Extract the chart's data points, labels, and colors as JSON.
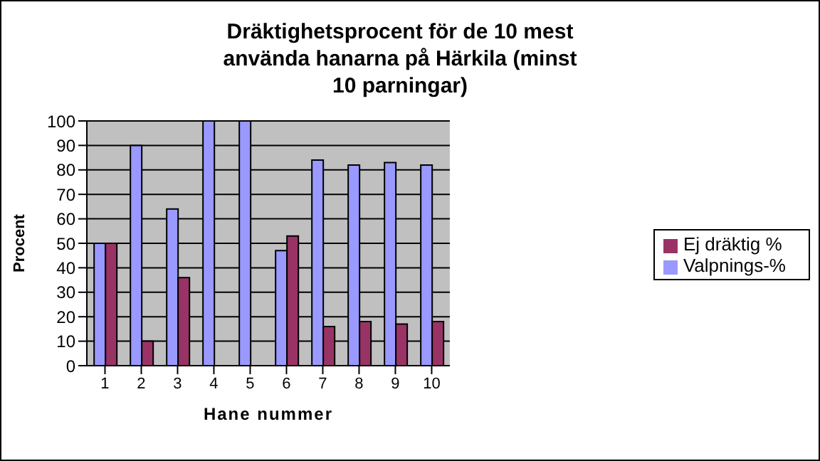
{
  "chart_data": {
    "type": "bar",
    "title": "Dräktighetsprocent för de 10 mest använda hanarna på Härkila (minst 10 parningar)",
    "xlabel": "Hane nummer",
    "ylabel": "Procent",
    "categories": [
      "1",
      "2",
      "3",
      "4",
      "5",
      "6",
      "7",
      "8",
      "9",
      "10"
    ],
    "series": [
      {
        "name": "Valpnings-%",
        "color": "#9999ff",
        "values": [
          50,
          90,
          64,
          100,
          100,
          47,
          84,
          82,
          83,
          82
        ]
      },
      {
        "name": "Ej dräktig %",
        "color": "#993366",
        "values": [
          50,
          10,
          36,
          0,
          0,
          53,
          16,
          18,
          17,
          18
        ]
      }
    ],
    "ylim": [
      0,
      100
    ],
    "yticks": [
      0,
      10,
      20,
      30,
      40,
      50,
      60,
      70,
      80,
      90,
      100
    ],
    "grid": "y",
    "legend": "right"
  }
}
